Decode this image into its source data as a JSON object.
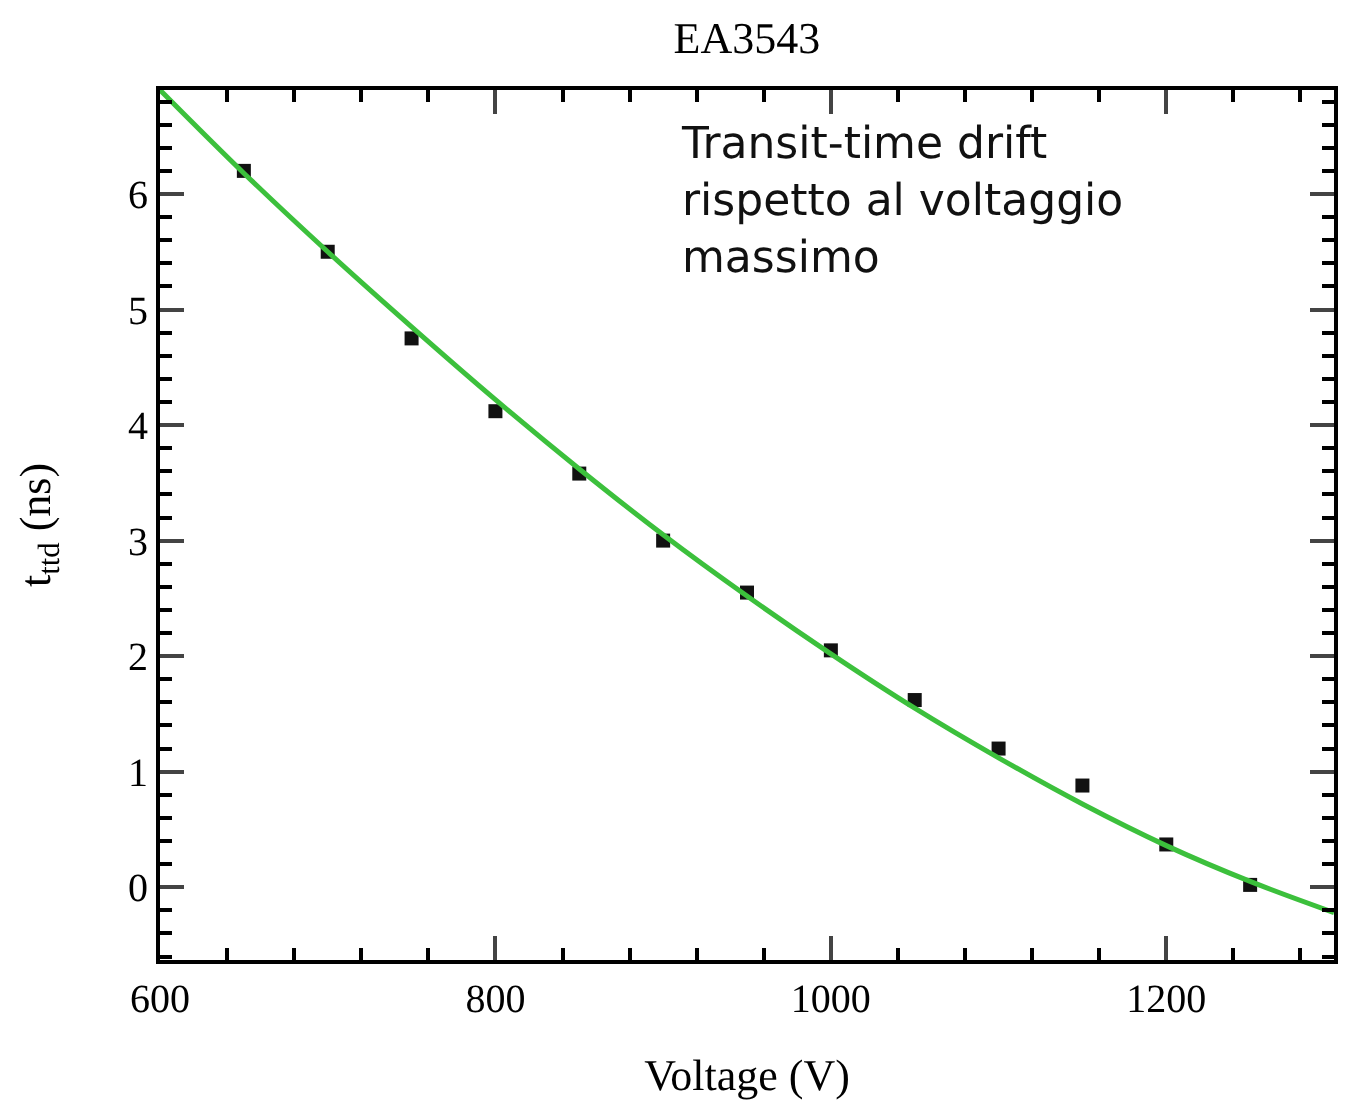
{
  "chart_data": {
    "type": "scatter",
    "title": "EA3543",
    "xlabel": "Voltage (V)",
    "ylabel": "t$_{ttd}$ (ns)",
    "x": [
      650,
      700,
      750,
      800,
      850,
      900,
      950,
      1000,
      1050,
      1100,
      1150,
      1200,
      1250
    ],
    "series": [
      {
        "color": "#111111",
        "marker": "square",
        "values": [
          6.2,
          5.5,
          4.75,
          4.12,
          3.58,
          3.0,
          2.55,
          2.05,
          1.62,
          1.2,
          0.88,
          0.37,
          0.02
        ]
      },
      {
        "type": "line",
        "color": "#3cc03c",
        "x": [
          600,
          650,
          700,
          750,
          800,
          850,
          900,
          950,
          1000,
          1050,
          1100,
          1150,
          1200,
          1250,
          1300
        ],
        "values": [
          6.9,
          6.18,
          5.5,
          4.85,
          4.22,
          3.62,
          3.05,
          2.52,
          2.02,
          1.55,
          1.12,
          0.72,
          0.36,
          0.05,
          -0.22
        ]
      }
    ],
    "annotations": [
      "Transit-time drift\nrispetto al voltaggio\nmassimo"
    ],
    "xlim": [
      600,
      1300
    ],
    "xticks": [
      600,
      800,
      1000,
      1200
    ],
    "ylim": [
      -0.63,
      6.9
    ],
    "yticks": [
      0,
      1,
      2,
      3,
      4,
      5,
      6
    ],
    "grid": false
  }
}
